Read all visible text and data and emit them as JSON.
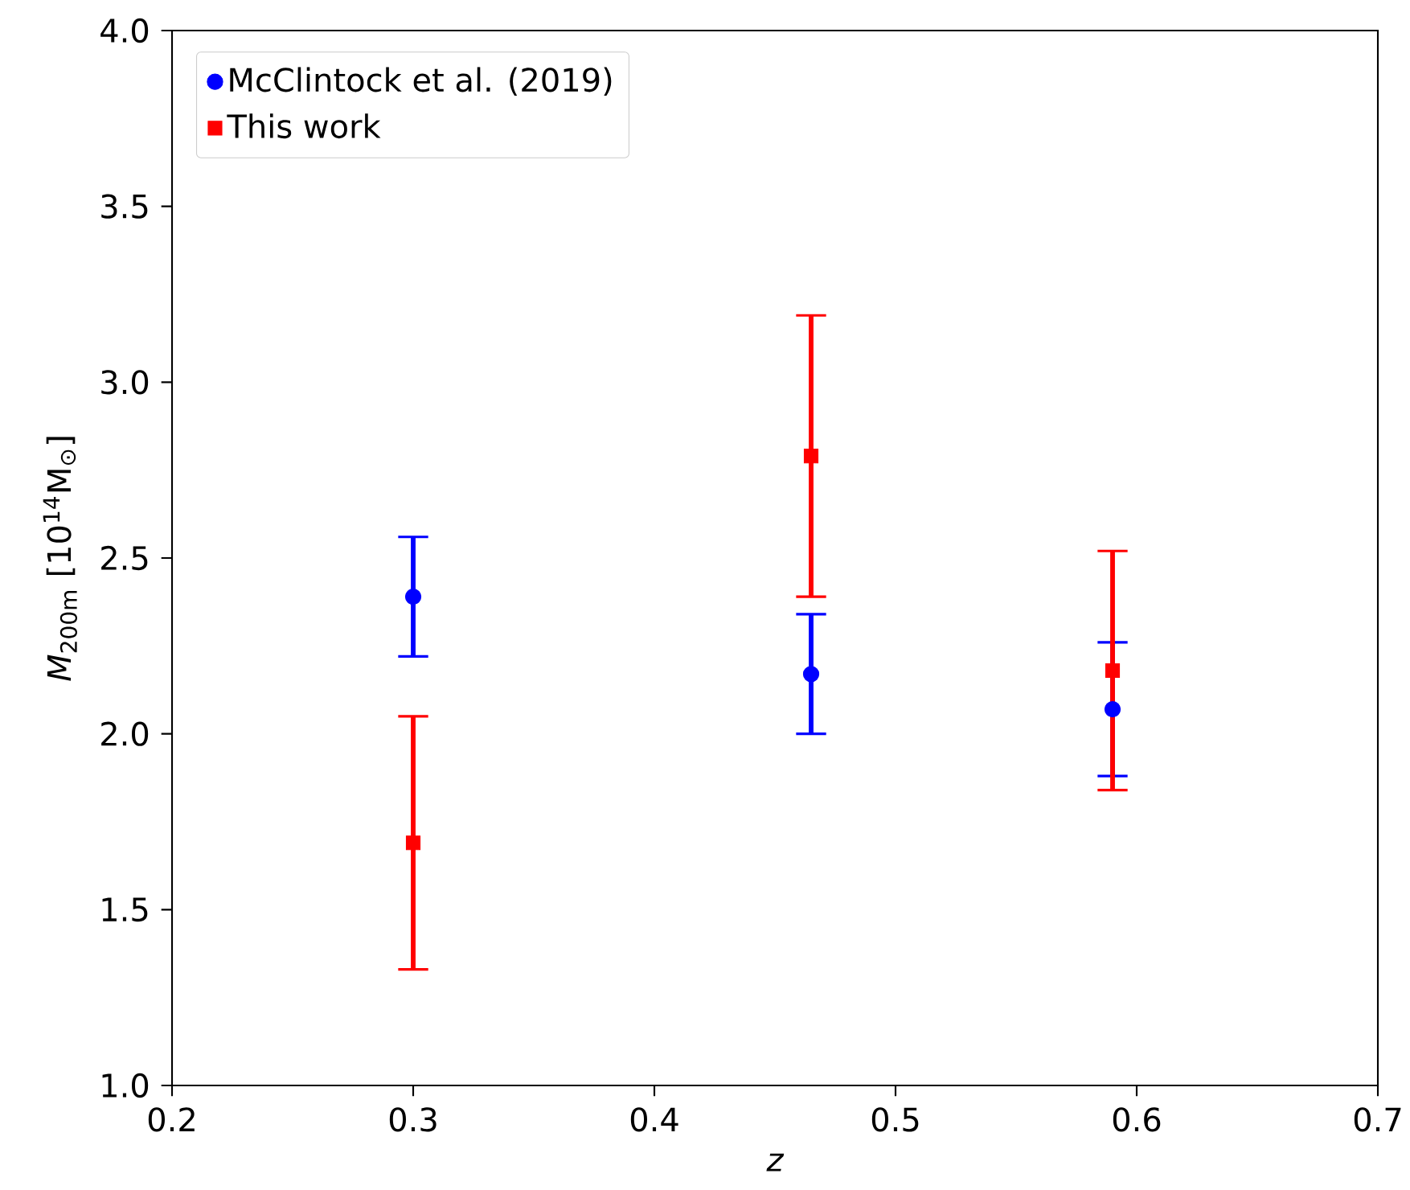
{
  "chart_data": {
    "type": "scatter",
    "xlabel": "z",
    "ylabel": "*M*$_{200m}$ [10$^{14}$M$_{⊙}$]",
    "x": [
      0.3,
      0.465,
      0.59
    ],
    "series": [
      {
        "name": "McClintock et al. (2019)",
        "color": "#0000ff",
        "marker": "circle",
        "values": [
          2.39,
          2.17,
          2.07
        ],
        "errors": [
          0.17,
          0.17,
          0.19
        ]
      },
      {
        "name": "This work",
        "color": "#ff0000",
        "marker": "square",
        "values": [
          1.69,
          2.79,
          2.18
        ],
        "errors": [
          0.36,
          0.4,
          0.34
        ]
      }
    ],
    "xlim": [
      0.2,
      0.7
    ],
    "xticks": [
      0.2,
      0.3,
      0.4,
      0.5,
      0.6,
      0.7
    ],
    "ylim": [
      1.0,
      4.0
    ],
    "yticks": [
      {
        "value": 1.0,
        "label": "1.0"
      },
      1.5,
      {
        "value": 2.0,
        "label": "2.0"
      },
      2.5,
      {
        "value": 3.0,
        "label": "3.0"
      },
      3.5,
      {
        "value": 4.0,
        "label": "4.0"
      }
    ],
    "grid": false,
    "legend": "top left"
  }
}
